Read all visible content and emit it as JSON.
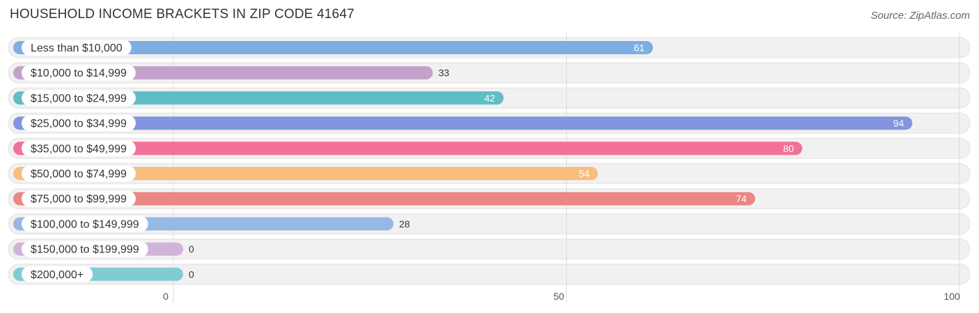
{
  "title": "HOUSEHOLD INCOME BRACKETS IN ZIP CODE 41647",
  "source": "Source: ZipAtlas.com",
  "chart_data": {
    "type": "bar",
    "orientation": "horizontal",
    "title": "HOUSEHOLD INCOME BRACKETS IN ZIP CODE 41647",
    "xlabel": "",
    "ylabel": "",
    "xlim": [
      0,
      100
    ],
    "x_ticks": [
      0,
      50,
      100
    ],
    "grid": true,
    "categories": [
      "Less than $10,000",
      "$10,000 to $14,999",
      "$15,000 to $24,999",
      "$25,000 to $34,999",
      "$35,000 to $49,999",
      "$50,000 to $74,999",
      "$75,000 to $99,999",
      "$100,000 to $149,999",
      "$150,000 to $199,999",
      "$200,000+"
    ],
    "values": [
      61,
      33,
      42,
      94,
      80,
      54,
      74,
      28,
      0,
      0
    ],
    "colors": [
      "#7eaee3",
      "#c4a1cb",
      "#5fbdc6",
      "#8395e0",
      "#f27199",
      "#f9bd7e",
      "#e98784",
      "#97b8e5",
      "#d1b5d8",
      "#7fcdd3"
    ]
  }
}
